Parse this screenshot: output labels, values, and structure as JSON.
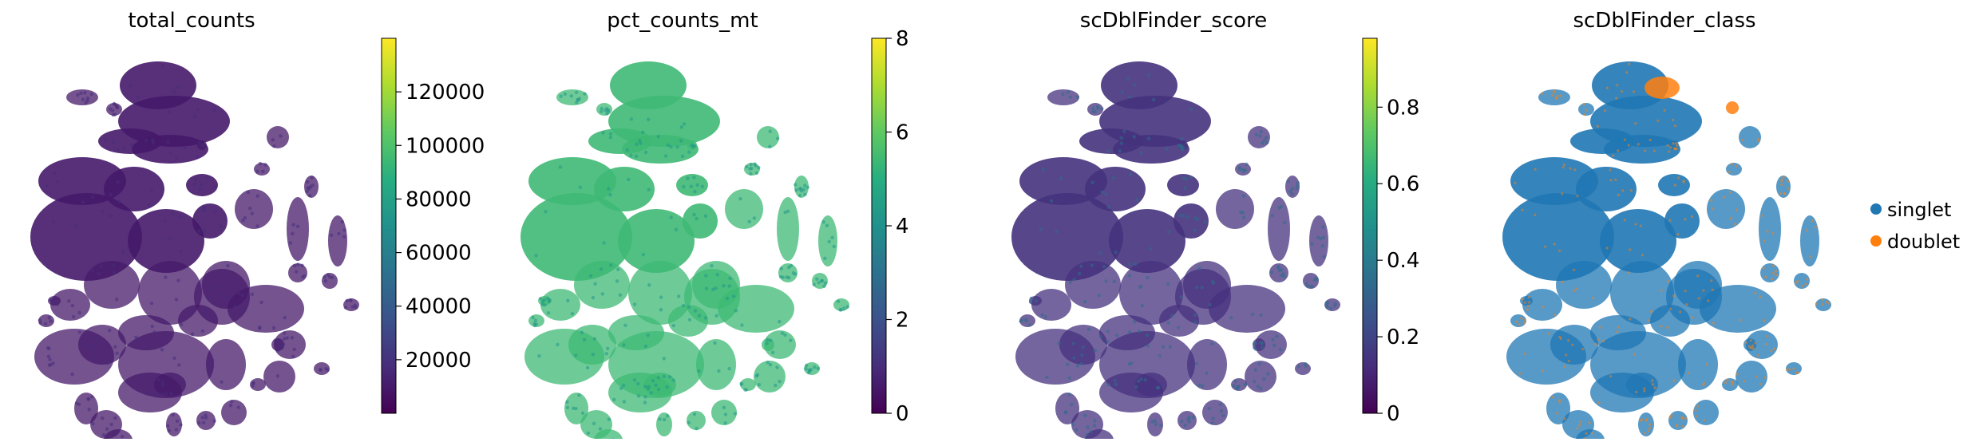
{
  "chart_data": [
    {
      "type": "scatter",
      "title": "total_counts",
      "xlabel": "",
      "ylabel": "",
      "grid": false,
      "color_scale": "viridis",
      "colorbar": {
        "min": 0,
        "max": 140000,
        "ticks": [
          20000,
          40000,
          60000,
          80000,
          100000,
          120000
        ]
      },
      "dominant_value": 10000,
      "secondary_value": 18000
    },
    {
      "type": "scatter",
      "title": "pct_counts_mt",
      "xlabel": "",
      "ylabel": "",
      "grid": false,
      "color_scale": "viridis",
      "colorbar": {
        "min": 0,
        "max": 8,
        "ticks": [
          0,
          2,
          4,
          6,
          8
        ]
      },
      "dominant_value": 5.4,
      "secondary_value": 4.2
    },
    {
      "type": "scatter",
      "title": "scDblFinder_score",
      "xlabel": "",
      "ylabel": "",
      "grid": false,
      "color_scale": "viridis",
      "colorbar": {
        "min": 0,
        "max": 0.98,
        "ticks": [
          0.0,
          0.2,
          0.4,
          0.6,
          0.8
        ]
      },
      "dominant_value": 0.14,
      "secondary_value": 0.34
    },
    {
      "type": "scatter",
      "title": "scDblFinder_class",
      "xlabel": "",
      "ylabel": "",
      "grid": false,
      "legend": {
        "placement": "right",
        "entries": [
          {
            "label": "singlet",
            "color": "#1f77b4"
          },
          {
            "label": "doublet",
            "color": "#ff7f0e"
          }
        ]
      }
    }
  ]
}
